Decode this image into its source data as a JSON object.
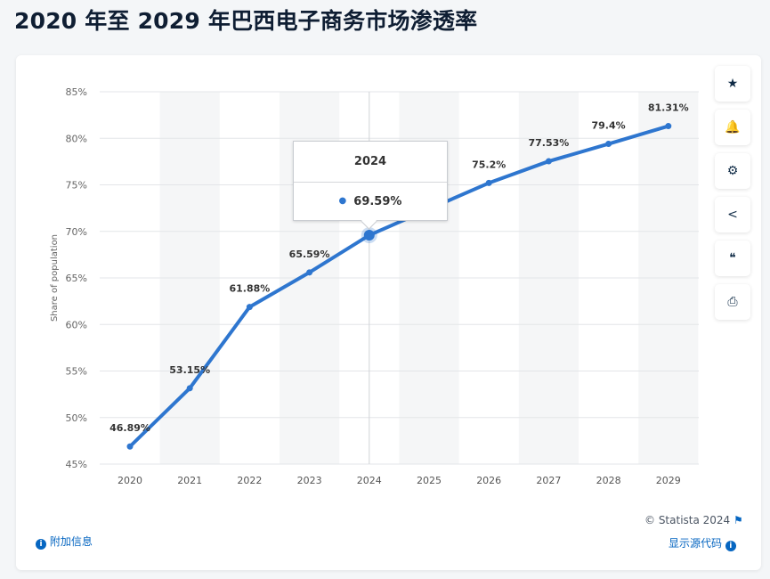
{
  "title": "2020 年至 2029 年巴西电子商务市场渗透率",
  "sidebar": [
    {
      "icon": "star-icon",
      "glyph": "★"
    },
    {
      "icon": "bell-icon",
      "glyph": "🔔"
    },
    {
      "icon": "gear-icon",
      "glyph": "⚙"
    },
    {
      "icon": "share-icon",
      "glyph": "<"
    },
    {
      "icon": "quote-icon",
      "glyph": "❝"
    },
    {
      "icon": "print-icon",
      "glyph": "⎙"
    }
  ],
  "tooltip": {
    "year": "2024",
    "value": "69.59%"
  },
  "footer": {
    "copyright": "© Statista 2024",
    "additional_info": "附加信息",
    "show_source": "显示源代码"
  },
  "colors": {
    "line": "#2e76cf",
    "band": "#f5f6f7",
    "grid": "#e3e5e8"
  },
  "chart_data": {
    "type": "line",
    "title": "2020 年至 2029 年巴西电子商务市场渗透率",
    "xlabel": "",
    "ylabel": "Share of population",
    "categories": [
      "2020",
      "2021",
      "2022",
      "2023",
      "2024",
      "2025",
      "2026",
      "2027",
      "2028",
      "2029"
    ],
    "values": [
      46.89,
      53.15,
      61.88,
      65.59,
      69.59,
      72.4,
      75.2,
      77.53,
      79.4,
      81.31
    ],
    "labels": [
      "46.89%",
      "53.15%",
      "61.88%",
      "65.59%",
      "69.59%",
      "",
      "75.2%",
      "77.53%",
      "79.4%",
      "81.31%"
    ],
    "ylim": [
      45,
      85
    ],
    "yticks": [
      "45%",
      "50%",
      "55%",
      "60%",
      "65%",
      "70%",
      "75%",
      "80%",
      "85%"
    ],
    "grid": true,
    "highlighted": "2024"
  }
}
